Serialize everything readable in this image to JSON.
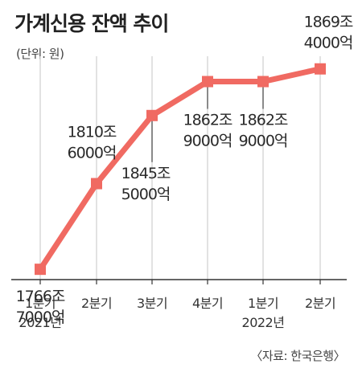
{
  "title": "가계신용 잔액 추이",
  "unit": "(단위: 원)",
  "source": "〈자료: 한국은행〉",
  "colors": {
    "line": "#f06a62",
    "gridline": "#cfcfcf",
    "axis": "#333333"
  },
  "chart_data": {
    "type": "line",
    "title": "가계신용 잔액 추이",
    "ylabel": "",
    "xlabel": "",
    "categories": [
      [
        "1분기",
        "2021년"
      ],
      [
        "2분기",
        ""
      ],
      [
        "3분기",
        ""
      ],
      [
        "4분기",
        ""
      ],
      [
        "1분기",
        "2022년"
      ],
      [
        "2분기",
        ""
      ]
    ],
    "values": [
      17667000,
      18106000,
      18455000,
      18629000,
      18629000,
      18694000
    ],
    "value_unit": "억원",
    "data_labels": [
      [
        "1766조",
        "7000억"
      ],
      [
        "1810조",
        "6000억"
      ],
      [
        "1845조",
        "5000억"
      ],
      [
        "1862조",
        "9000억"
      ],
      [
        "1862조",
        "9000억"
      ],
      [
        "1869조",
        "4000억"
      ]
    ],
    "ylim": [
      17400000,
      18800000
    ],
    "grid": "vertical",
    "legend": "none"
  }
}
